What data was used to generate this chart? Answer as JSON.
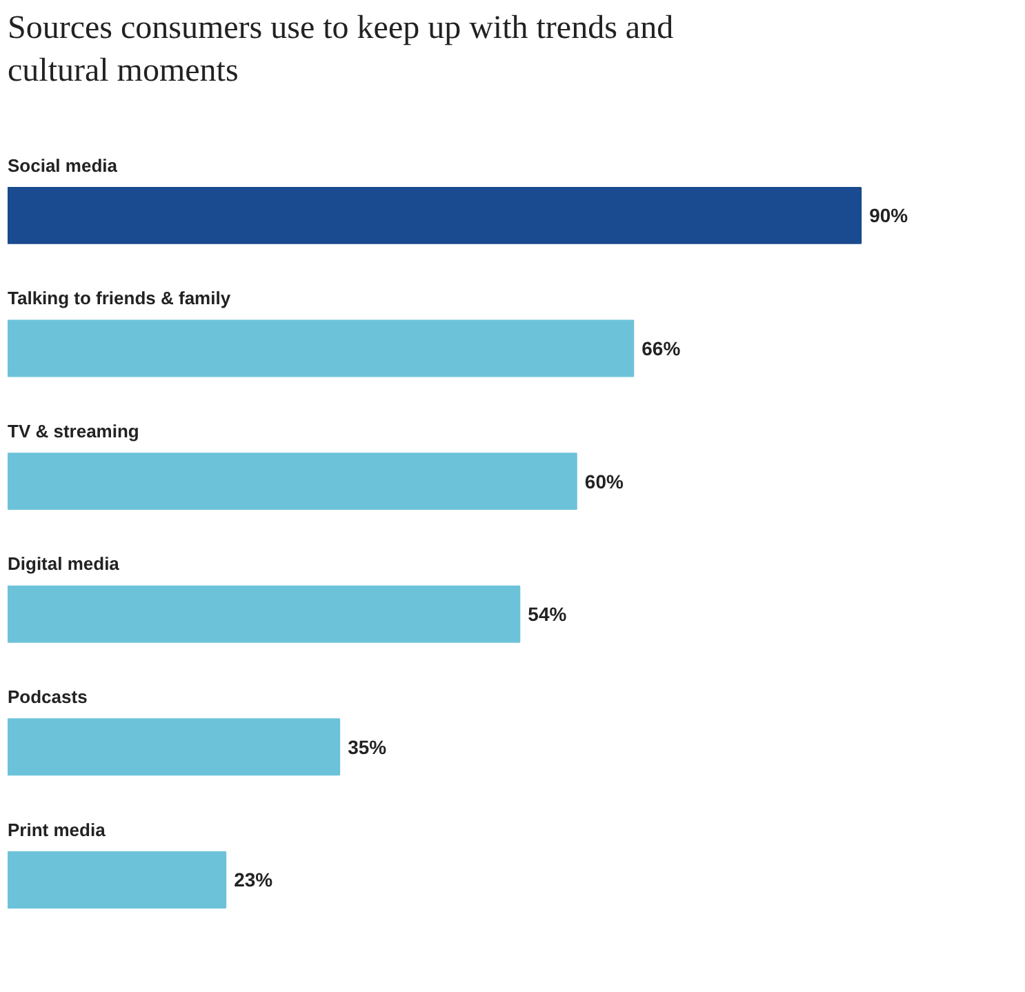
{
  "chart_data": {
    "type": "bar",
    "orientation": "horizontal",
    "title": "Sources consumers use to keep up with trends and cultural moments",
    "categories": [
      "Social media",
      "Talking to friends & family",
      "TV & streaming",
      "Digital media",
      "Podcasts",
      "Print media"
    ],
    "values": [
      90,
      66,
      60,
      54,
      35,
      23
    ],
    "colors": [
      "#1a4a8f",
      "#6cc3d9",
      "#6cc3d9",
      "#6cc3d9",
      "#6cc3d9",
      "#6cc3d9"
    ],
    "value_labels": [
      "90%",
      "66%",
      "60%",
      "54%",
      "35%",
      "23%"
    ],
    "tick_labels": false,
    "grid": false
  }
}
